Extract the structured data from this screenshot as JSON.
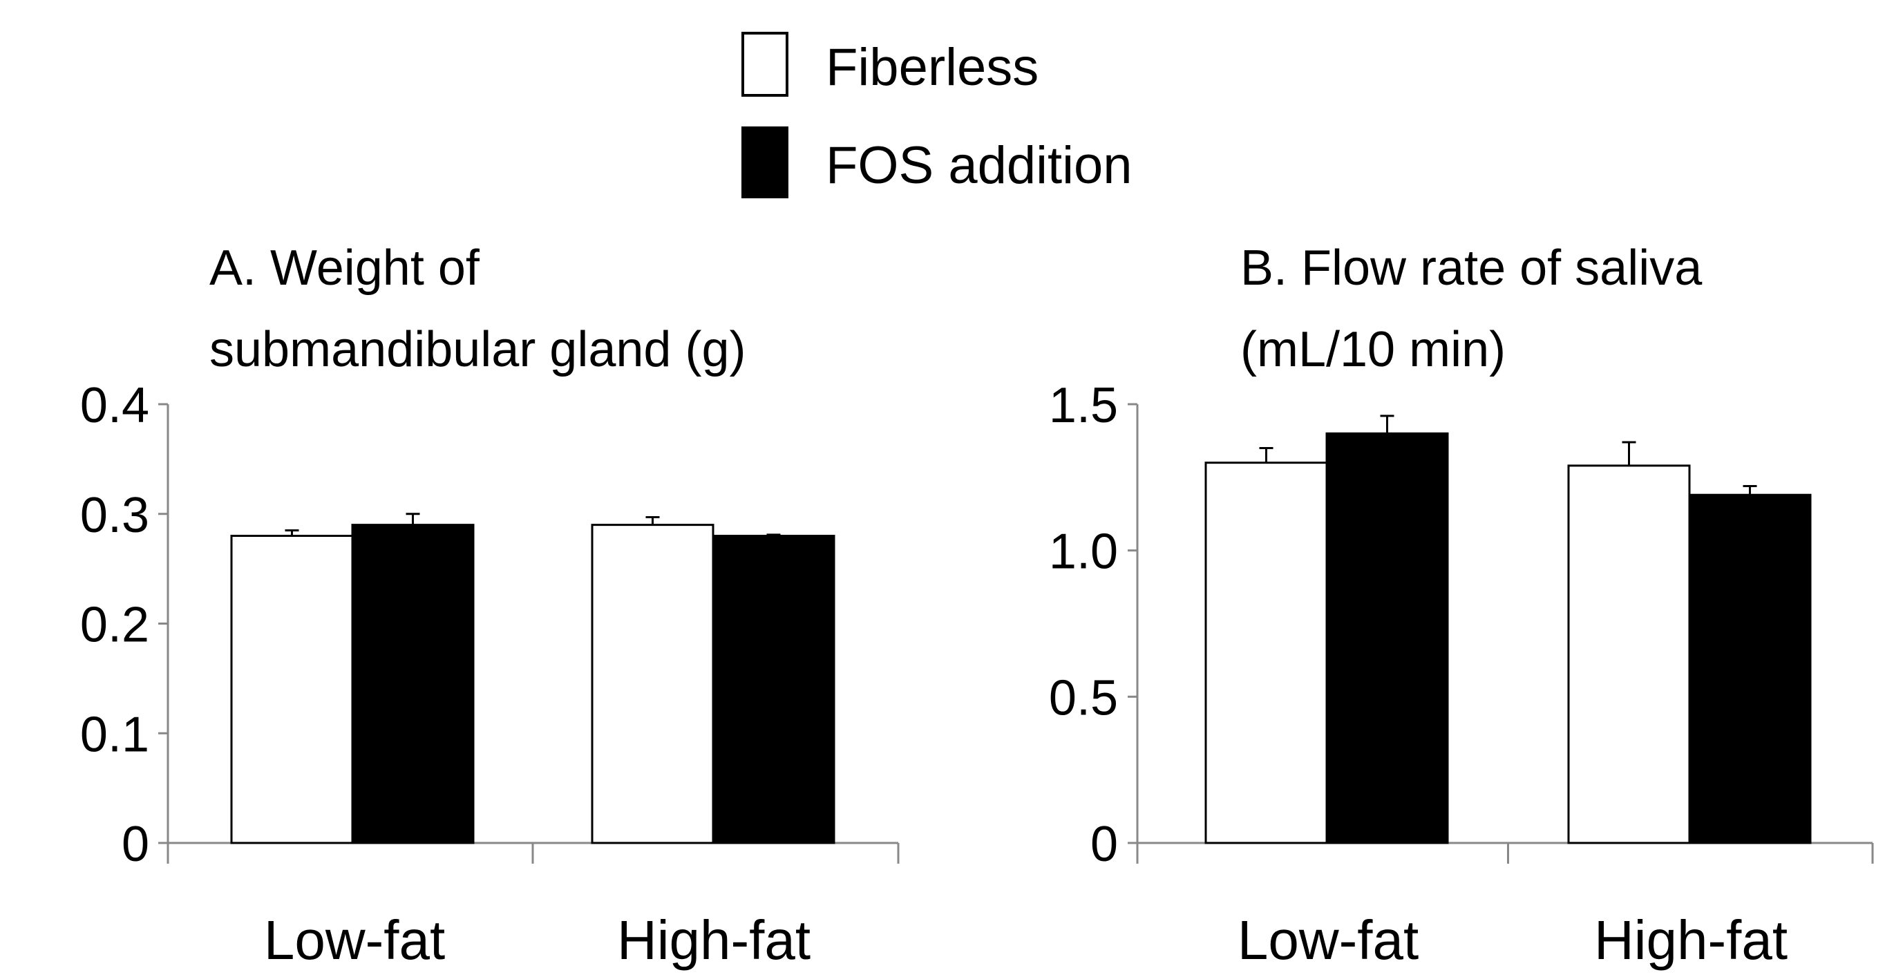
{
  "legend": {
    "items": [
      {
        "label": "Fiberless",
        "fill": "#ffffff"
      },
      {
        "label": "FOS addition",
        "fill": "#000000"
      }
    ]
  },
  "chart_data": [
    {
      "type": "bar",
      "title_lines": [
        "A. Weight of",
        "submandibular gland (g)"
      ],
      "categories": [
        "Low-fat",
        "High-fat"
      ],
      "series": [
        {
          "name": "Fiberless",
          "values": [
            0.28,
            0.29
          ],
          "errors": [
            0.005,
            0.007
          ]
        },
        {
          "name": "FOS addition",
          "values": [
            0.29,
            0.28
          ],
          "errors": [
            0.01,
            0.001
          ]
        }
      ],
      "ylim": [
        0,
        0.4
      ],
      "yticks": [
        0,
        0.1,
        0.2,
        0.3,
        0.4
      ],
      "ytick_labels": [
        "0",
        "0.1",
        "0.2",
        "0.3",
        "0.4"
      ]
    },
    {
      "type": "bar",
      "title_lines": [
        "B. Flow rate of saliva",
        "(mL/10 min)"
      ],
      "categories": [
        "Low-fat",
        "High-fat"
      ],
      "series": [
        {
          "name": "Fiberless",
          "values": [
            1.3,
            1.29
          ],
          "errors": [
            0.05,
            0.08
          ]
        },
        {
          "name": "FOS addition",
          "values": [
            1.4,
            1.19
          ],
          "errors": [
            0.06,
            0.03
          ]
        }
      ],
      "ylim": [
        0,
        1.5
      ],
      "yticks": [
        0,
        0.5,
        1.0,
        1.5
      ],
      "ytick_labels": [
        "0",
        "0.5",
        "1.0",
        "1.5"
      ]
    }
  ]
}
